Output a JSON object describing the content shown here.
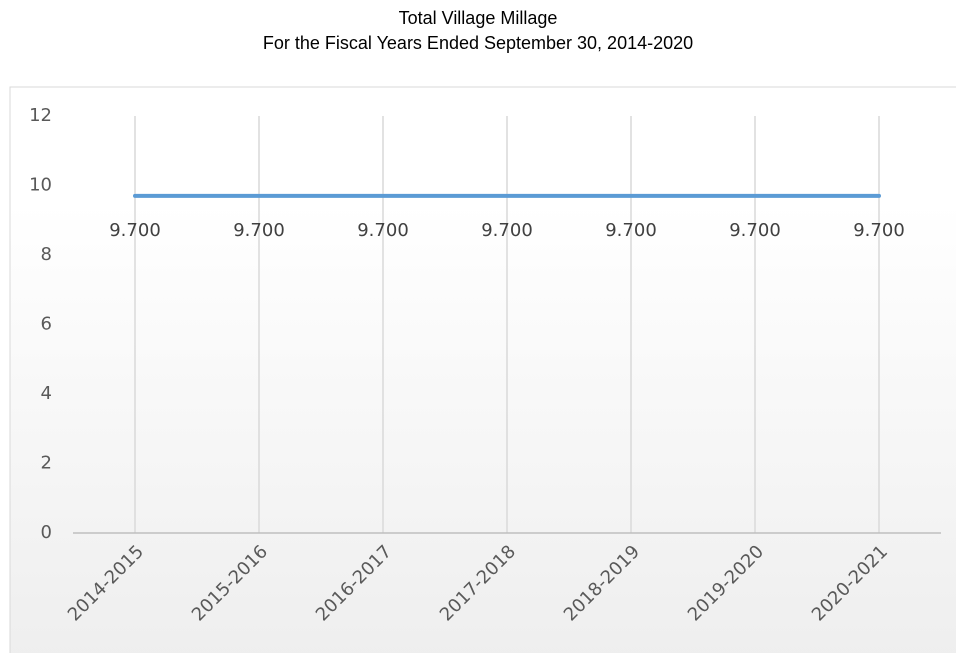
{
  "chart_data": {
    "type": "line",
    "title": "Total Village Millage",
    "subtitle": "For the Fiscal Years Ended September 30, 2014-2020",
    "categories": [
      "2014-2015",
      "2015-2016",
      "2016-2017",
      "2017-2018",
      "2018-2019",
      "2019-2020",
      "2020-2021"
    ],
    "series": [
      {
        "name": "Total Village Millage",
        "color": "#5b9bd5",
        "values": [
          9.7,
          9.7,
          9.7,
          9.7,
          9.7,
          9.7,
          9.7
        ],
        "value_labels": [
          "9.700",
          "9.700",
          "9.700",
          "9.700",
          "9.700",
          "9.700",
          "9.700"
        ]
      }
    ],
    "ylim": [
      0,
      12
    ],
    "yticks": [
      0,
      2,
      4,
      6,
      8,
      10,
      12
    ],
    "grid": "x"
  }
}
